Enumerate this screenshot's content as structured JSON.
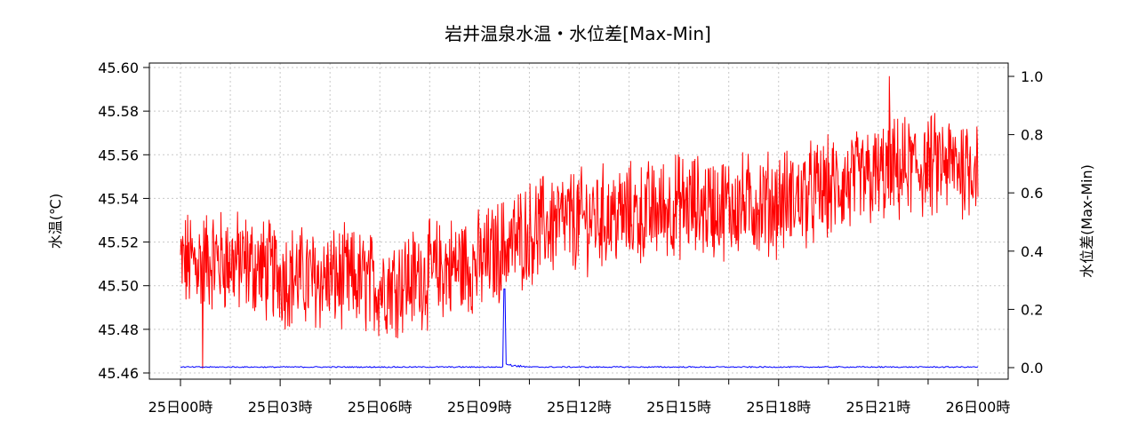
{
  "chart_data": {
    "type": "line",
    "title": "岩井温泉水温・水位差[Max-Min]",
    "xlabel": "",
    "ylabel": "水温(℃)",
    "y2label": "水位差(Max-Min)",
    "x_ticks": [
      "25日00時",
      "25日03時",
      "25日06時",
      "25日09時",
      "25日12時",
      "25日15時",
      "25日18時",
      "25日21時",
      "26日00時"
    ],
    "x_range_hours": [
      0,
      24
    ],
    "ylim": [
      45.46,
      45.6
    ],
    "y_ticks": [
      "45.46",
      "45.48",
      "45.50",
      "45.52",
      "45.54",
      "45.56",
      "45.58",
      "45.60"
    ],
    "y2lim": [
      0.0,
      1.0
    ],
    "y2_ticks": [
      "0.0",
      "0.2",
      "0.4",
      "0.6",
      "0.8",
      "1.0"
    ],
    "grid": true,
    "series": [
      {
        "axis": "left",
        "color": "#ff0000",
        "trend_hours": [
          0,
          1,
          2,
          3,
          4,
          5,
          6,
          7,
          8,
          9,
          10,
          11,
          12,
          13,
          14,
          15,
          16,
          17,
          18,
          19,
          20,
          21,
          22,
          23,
          24
        ],
        "trend_values": [
          45.51,
          45.512,
          45.51,
          45.505,
          45.503,
          45.503,
          45.5,
          45.503,
          45.508,
          45.51,
          45.52,
          45.528,
          45.53,
          45.532,
          45.533,
          45.537,
          45.536,
          45.537,
          45.538,
          45.542,
          45.546,
          45.55,
          45.554,
          45.555,
          45.556
        ],
        "min": 45.462,
        "max": 45.596
      },
      {
        "axis": "right",
        "color": "#0000ff",
        "baseline": 0.0,
        "spike_hour": 9.75,
        "spike_value": 0.27
      }
    ]
  }
}
